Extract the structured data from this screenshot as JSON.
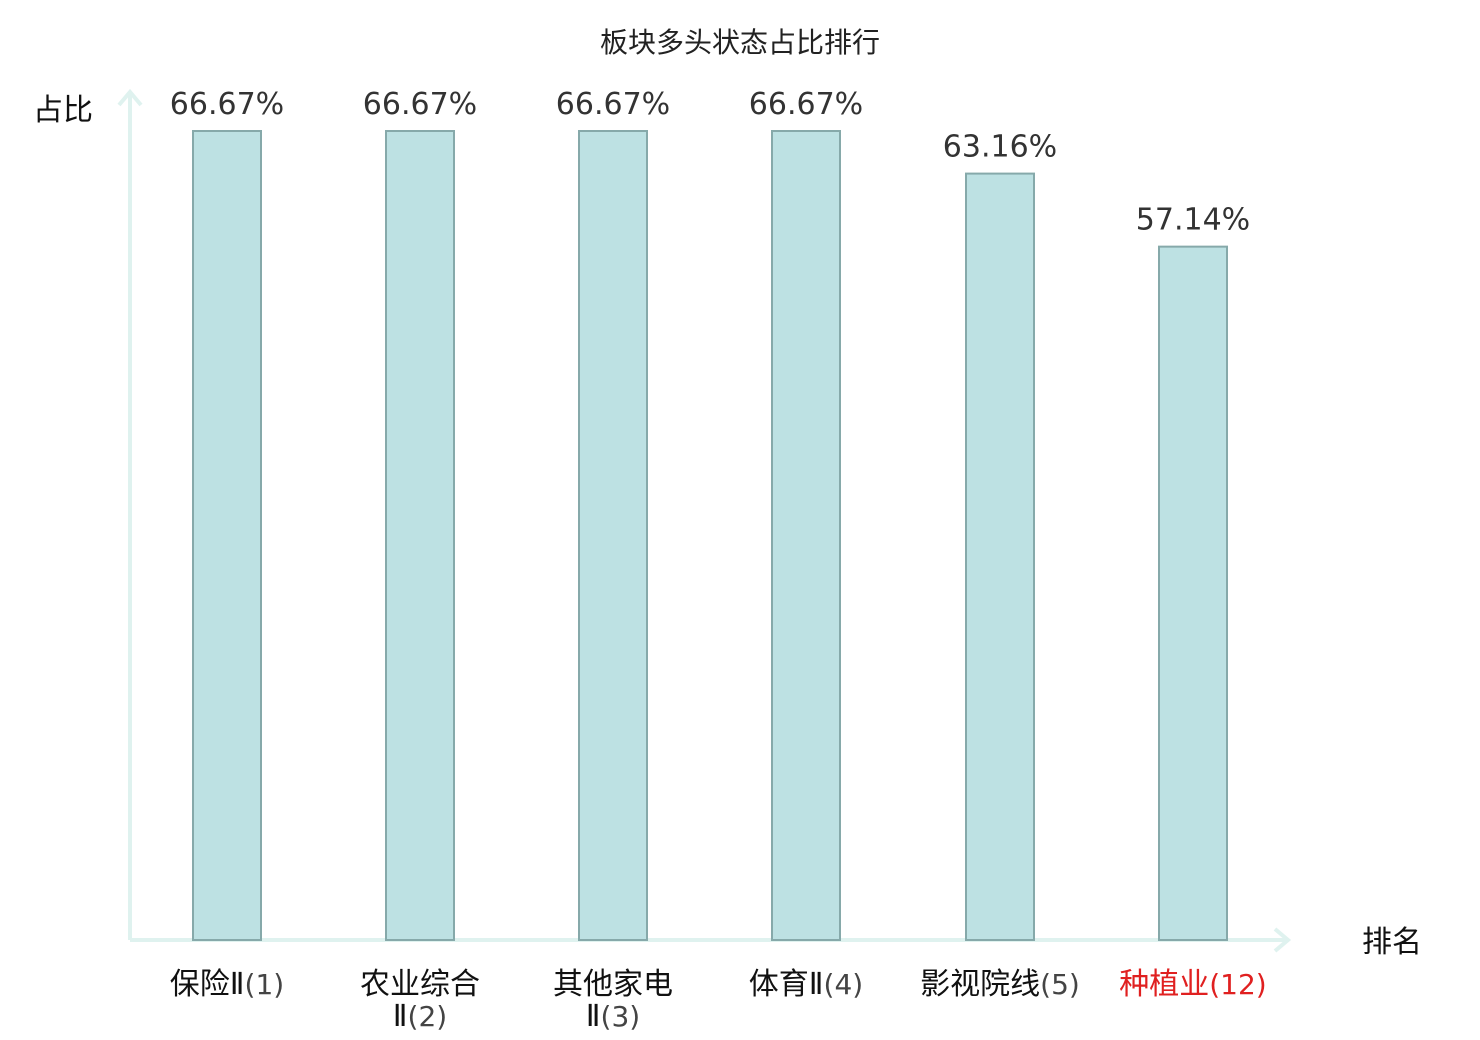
{
  "chart_data": {
    "type": "bar",
    "title": "板块多头状态占比排行",
    "ylabel": "占比",
    "xlabel": "排名",
    "ylim": [
      0,
      70
    ],
    "grid": false,
    "categories": [
      {
        "name": "保险Ⅱ",
        "rank": "(1)",
        "lines": [
          "保险Ⅱ(1)"
        ]
      },
      {
        "name": "农业综合Ⅱ",
        "rank": "(2)",
        "lines": [
          "农业综合",
          "Ⅱ(2)"
        ]
      },
      {
        "name": "其他家电Ⅱ",
        "rank": "(3)",
        "lines": [
          "其他家电",
          "Ⅱ(3)"
        ]
      },
      {
        "name": "体育Ⅱ",
        "rank": "(4)",
        "lines": [
          "体育Ⅱ(4)"
        ]
      },
      {
        "name": "影视院线",
        "rank": "(5)",
        "lines": [
          "影视院线(5)"
        ]
      },
      {
        "name": "种植业",
        "rank": "(12)",
        "lines": [
          "种植业(12)"
        ],
        "highlight": true
      }
    ],
    "values": [
      66.67,
      66.67,
      66.67,
      66.67,
      63.16,
      57.14
    ],
    "value_labels": [
      "66.67%",
      "66.67%",
      "66.67%",
      "66.67%",
      "63.16%",
      "57.14%"
    ]
  },
  "colors": {
    "bar_fill": "#bde1e3",
    "bar_stroke": "#86a9aa",
    "axis": "#dff2ef",
    "label_default": "#111111",
    "rank_default": "#444444",
    "highlight": "#e02020"
  }
}
